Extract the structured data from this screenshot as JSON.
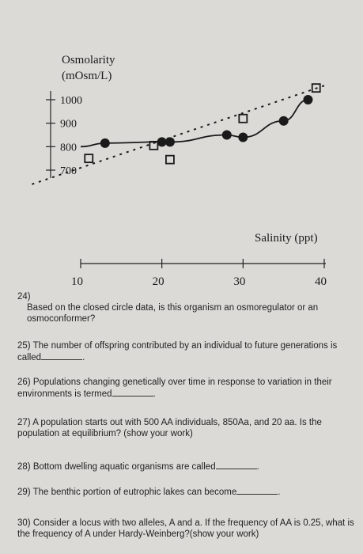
{
  "chart_data": {
    "type": "scatter",
    "ylabel": "Osmolarity",
    "yunit": "(mOsm/L)",
    "xlabel": "Salinity (ppt)",
    "x_ticks": [
      "10",
      "20",
      "30",
      "40"
    ],
    "y_ticks": [
      "1000",
      "900",
      "800",
      "700"
    ],
    "series": [
      {
        "marker": "open-square",
        "line": "dashed",
        "color": "#1a1a1a",
        "points": [
          [
            11,
            750
          ],
          [
            19,
            805
          ],
          [
            21,
            745
          ],
          [
            30,
            920
          ],
          [
            39,
            1050
          ]
        ]
      },
      {
        "marker": "closed-circle",
        "line": "solid",
        "color": "#1a1a1a",
        "points": [
          [
            13,
            815
          ],
          [
            20,
            820
          ],
          [
            21,
            820
          ],
          [
            28,
            850
          ],
          [
            30,
            840
          ],
          [
            35,
            910
          ],
          [
            38,
            1000
          ]
        ]
      }
    ]
  },
  "questions": [
    {
      "num": "24)",
      "text": "Based on the closed circle data, is this organism an osmoregulator or an osmoconformer?"
    },
    {
      "num": "25)",
      "text": "The number of offspring contributed by an individual to future generations is called"
    },
    {
      "num": "26)",
      "text": "Populations changing genetically over time in response to variation in their environments is termed"
    },
    {
      "num": "27)",
      "text": "A population starts out with 500 AA individuals, 850Aa, and 20 aa. Is the population at equilibrium? (show your work)"
    },
    {
      "num": "28)",
      "text": "Bottom dwelling aquatic organisms are called"
    },
    {
      "num": "29)",
      "text": "The benthic portion of eutrophic lakes can become"
    },
    {
      "num": "30)",
      "text": "Consider a locus with two alleles, A and a. If the frequency of AA is 0.25, what is the frequency of A under Hardy-Weinberg?(show your work)"
    }
  ]
}
